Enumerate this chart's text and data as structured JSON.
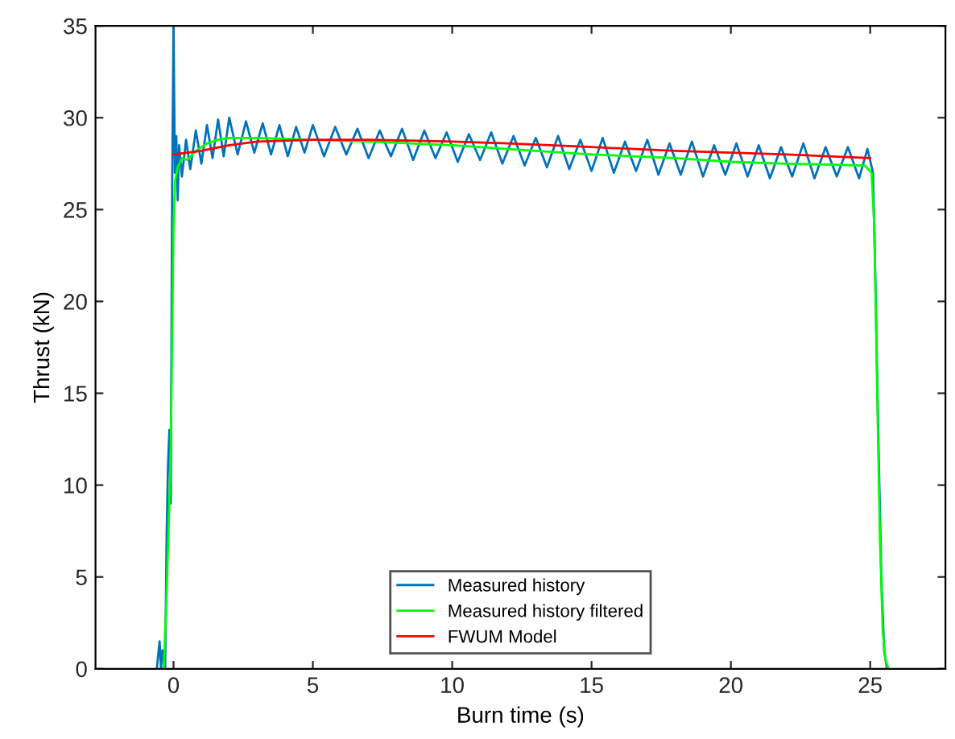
{
  "chart_data": {
    "type": "line",
    "xlabel": "Burn time (s)",
    "ylabel": "Thrust (kN)",
    "xlim": [
      -2.8,
      27.7
    ],
    "ylim": [
      0,
      35
    ],
    "xticks": [
      0,
      5,
      10,
      15,
      20,
      25
    ],
    "yticks": [
      0,
      5,
      10,
      15,
      20,
      25,
      30,
      35
    ],
    "grid": false,
    "legend": "bottom",
    "line_style": "solid",
    "marker": "none",
    "series": [
      {
        "name": "Measured history",
        "color": "#0072bd",
        "x": [
          -0.6,
          -0.5,
          -0.45,
          -0.4,
          -0.3,
          -0.25,
          -0.2,
          -0.15,
          -0.1,
          -0.05,
          0,
          0.05,
          0.1,
          0.15,
          0.2,
          0.3,
          0.45,
          0.6,
          0.8,
          1.0,
          1.2,
          1.4,
          1.6,
          1.8,
          2.0,
          2.3,
          2.6,
          2.9,
          3.2,
          3.5,
          3.8,
          4.1,
          4.4,
          4.7,
          5.0,
          5.4,
          5.8,
          6.2,
          6.6,
          7.0,
          7.4,
          7.8,
          8.2,
          8.6,
          9.0,
          9.4,
          9.8,
          10.2,
          10.6,
          11.0,
          11.4,
          11.8,
          12.2,
          12.6,
          13.0,
          13.4,
          13.8,
          14.2,
          14.6,
          15.0,
          15.4,
          15.8,
          16.2,
          16.6,
          17.0,
          17.4,
          17.8,
          18.2,
          18.6,
          19.0,
          19.4,
          19.8,
          20.2,
          20.6,
          21.0,
          21.4,
          21.8,
          22.2,
          22.6,
          23.0,
          23.4,
          23.8,
          24.2,
          24.6,
          24.9,
          25.1,
          25.2,
          25.3,
          25.4,
          25.5,
          25.6
        ],
        "values": [
          0,
          1.5,
          0,
          1,
          0,
          7,
          11,
          13,
          9,
          26,
          35,
          27,
          29,
          25.5,
          28.5,
          26.8,
          28.8,
          27.2,
          29.3,
          27.5,
          29.6,
          27.8,
          29.9,
          27.9,
          30,
          28,
          29.8,
          28.1,
          29.7,
          28,
          29.6,
          27.9,
          29.5,
          28.1,
          29.6,
          27.9,
          29.5,
          28,
          29.4,
          27.8,
          29.3,
          27.9,
          29.4,
          27.7,
          29.3,
          27.8,
          29.2,
          27.6,
          29.1,
          27.7,
          29.2,
          27.5,
          29,
          27.4,
          28.9,
          27.3,
          29,
          27.2,
          28.8,
          27.1,
          28.9,
          27,
          28.7,
          27.1,
          28.8,
          26.9,
          28.6,
          26.9,
          28.7,
          26.8,
          28.5,
          26.9,
          28.6,
          26.8,
          28.5,
          26.7,
          28.4,
          26.8,
          28.6,
          26.7,
          28.4,
          26.8,
          28.4,
          26.7,
          28.3,
          27,
          20,
          12,
          5,
          1,
          0
        ]
      },
      {
        "name": "Measured history filtered",
        "color": "#00ff00",
        "x": [
          -0.35,
          -0.25,
          -0.15,
          -0.1,
          -0.05,
          0,
          0.05,
          0.15,
          0.3,
          0.5,
          0.8,
          1.2,
          1.6,
          2.0,
          3,
          5,
          7,
          10,
          12,
          15,
          18,
          20,
          22,
          24.8,
          25.05,
          25.15,
          25.25,
          25.35,
          25.45,
          25.55,
          25.65
        ],
        "values": [
          0,
          4,
          9,
          12,
          18,
          24,
          26.5,
          27.3,
          27.8,
          27.7,
          28.2,
          28.6,
          28.8,
          28.9,
          28.9,
          28.8,
          28.7,
          28.5,
          28.3,
          28,
          27.8,
          27.6,
          27.5,
          27.4,
          27,
          24,
          15,
          7,
          2,
          0.5,
          0
        ]
      },
      {
        "name": "FWUM Model",
        "color": "#ff0000",
        "x": [
          0,
          1,
          2,
          3,
          5,
          7,
          10,
          12,
          15,
          18,
          20,
          22,
          25
        ],
        "values": [
          28,
          28.2,
          28.5,
          28.7,
          28.8,
          28.8,
          28.7,
          28.6,
          28.4,
          28.2,
          28.1,
          28,
          27.8
        ]
      }
    ]
  }
}
